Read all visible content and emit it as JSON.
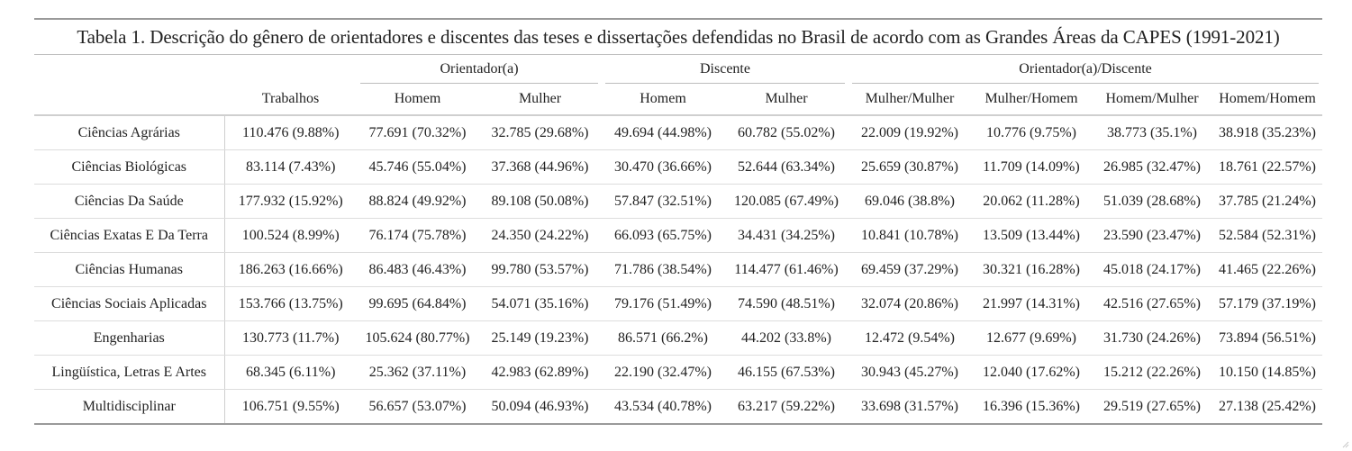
{
  "caption": "Tabela 1. Descrição do gênero de orientadores e discentes das teses e dissertações defendidas no Brasil de acordo com as Grandes Áreas da CAPES (1991-2021)",
  "headers": {
    "groups": {
      "orientador": "Orientador(a)",
      "discente": "Discente",
      "orientador_discente": "Orientador(a)/Discente"
    },
    "trabalhos": "Trabalhos",
    "sub": [
      "Homem",
      "Mulher",
      "Homem",
      "Mulher",
      "Mulher/Mulher",
      "Mulher/Homem",
      "Homem/Mulher",
      "Homem/Homem"
    ]
  },
  "rows": [
    {
      "area": "Ciências Agrárias",
      "cells": [
        "110.476 (9.88%)",
        "77.691 (70.32%)",
        "32.785 (29.68%)",
        "49.694 (44.98%)",
        "60.782 (55.02%)",
        "22.009 (19.92%)",
        "10.776 (9.75%)",
        "38.773 (35.1%)",
        "38.918 (35.23%)"
      ]
    },
    {
      "area": "Ciências Biológicas",
      "cells": [
        "83.114 (7.43%)",
        "45.746 (55.04%)",
        "37.368 (44.96%)",
        "30.470 (36.66%)",
        "52.644 (63.34%)",
        "25.659 (30.87%)",
        "11.709 (14.09%)",
        "26.985 (32.47%)",
        "18.761 (22.57%)"
      ]
    },
    {
      "area": "Ciências Da Saúde",
      "cells": [
        "177.932 (15.92%)",
        "88.824 (49.92%)",
        "89.108 (50.08%)",
        "57.847 (32.51%)",
        "120.085 (67.49%)",
        "69.046 (38.8%)",
        "20.062 (11.28%)",
        "51.039 (28.68%)",
        "37.785 (21.24%)"
      ]
    },
    {
      "area": "Ciências Exatas E Da Terra",
      "cells": [
        "100.524 (8.99%)",
        "76.174 (75.78%)",
        "24.350 (24.22%)",
        "66.093 (65.75%)",
        "34.431 (34.25%)",
        "10.841 (10.78%)",
        "13.509 (13.44%)",
        "23.590 (23.47%)",
        "52.584 (52.31%)"
      ]
    },
    {
      "area": "Ciências Humanas",
      "cells": [
        "186.263 (16.66%)",
        "86.483 (46.43%)",
        "99.780 (53.57%)",
        "71.786 (38.54%)",
        "114.477 (61.46%)",
        "69.459 (37.29%)",
        "30.321 (16.28%)",
        "45.018 (24.17%)",
        "41.465 (22.26%)"
      ]
    },
    {
      "area": "Ciências Sociais Aplicadas",
      "cells": [
        "153.766 (13.75%)",
        "99.695 (64.84%)",
        "54.071 (35.16%)",
        "79.176 (51.49%)",
        "74.590 (48.51%)",
        "32.074 (20.86%)",
        "21.997 (14.31%)",
        "42.516 (27.65%)",
        "57.179 (37.19%)"
      ]
    },
    {
      "area": "Engenharias",
      "cells": [
        "130.773 (11.7%)",
        "105.624 (80.77%)",
        "25.149 (19.23%)",
        "86.571 (66.2%)",
        "44.202 (33.8%)",
        "12.472 (9.54%)",
        "12.677 (9.69%)",
        "31.730 (24.26%)",
        "73.894 (56.51%)"
      ]
    },
    {
      "area": "Lingüística, Letras E Artes",
      "cells": [
        "68.345 (6.11%)",
        "25.362 (37.11%)",
        "42.983 (62.89%)",
        "22.190 (32.47%)",
        "46.155 (67.53%)",
        "30.943 (45.27%)",
        "12.040 (17.62%)",
        "15.212 (22.26%)",
        "10.150 (14.85%)"
      ]
    },
    {
      "area": "Multidisciplinar",
      "cells": [
        "106.751 (9.55%)",
        "56.657 (53.07%)",
        "50.094 (46.93%)",
        "43.534 (40.78%)",
        "63.217 (59.22%)",
        "33.698 (31.57%)",
        "16.396 (15.36%)",
        "29.519 (27.65%)",
        "27.138 (25.42%)"
      ]
    }
  ]
}
